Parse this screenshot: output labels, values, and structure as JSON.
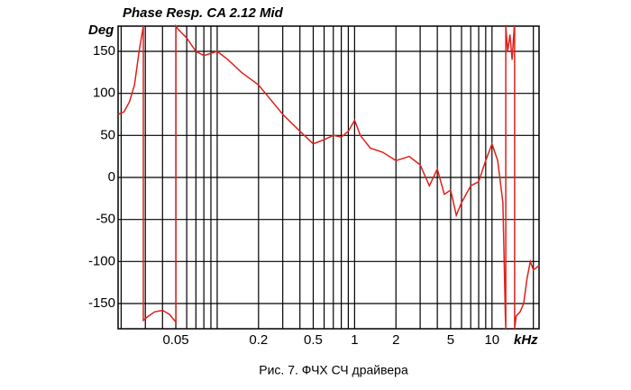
{
  "chart_data": {
    "type": "line",
    "title": "Phase Resp.  CA  2.12 Mid",
    "y_label": "Deg",
    "x_label": "kHz",
    "caption": "Рис. 7. ФЧХ СЧ драйвера",
    "log_x": true,
    "grid": true,
    "xlim": [
      0.019,
      22
    ],
    "ylim": [
      -180,
      180
    ],
    "xticks": [
      0.05,
      0.2,
      0.5,
      1,
      2,
      5,
      10
    ],
    "xminor_ticks": [
      0.02,
      0.03,
      0.04,
      0.05,
      0.06,
      0.07,
      0.08,
      0.09,
      0.1,
      0.2,
      0.3,
      0.4,
      0.5,
      0.6,
      0.7,
      0.8,
      0.9,
      1,
      2,
      3,
      4,
      5,
      6,
      7,
      8,
      9,
      10,
      20
    ],
    "yticks": [
      150,
      100,
      50,
      0,
      -50,
      -100,
      -150
    ],
    "series": [
      {
        "name": "Phase",
        "color": "#e0201a",
        "x": [
          0.019,
          0.021,
          0.023,
          0.025,
          0.027,
          0.029,
          0.029,
          0.031,
          0.035,
          0.04,
          0.045,
          0.05,
          0.05,
          0.052,
          0.06,
          0.07,
          0.08,
          0.1,
          0.12,
          0.15,
          0.2,
          0.3,
          0.4,
          0.5,
          0.6,
          0.7,
          0.8,
          0.9,
          1.0,
          1.1,
          1.3,
          1.6,
          2,
          2.5,
          3,
          3.5,
          4,
          4.5,
          5,
          5.5,
          6,
          7,
          8,
          9,
          10,
          11,
          12,
          12.5,
          12.6,
          12.6,
          13,
          13.5,
          14,
          14.5,
          14.6,
          14.6,
          15,
          16,
          17,
          18,
          19,
          20,
          22
        ],
        "values": [
          75,
          78,
          90,
          110,
          150,
          180,
          -170,
          -166,
          -160,
          -158,
          -163,
          -172,
          180,
          176,
          166,
          150,
          145,
          150,
          140,
          125,
          110,
          75,
          55,
          40,
          45,
          50,
          48,
          55,
          68,
          50,
          35,
          30,
          20,
          25,
          15,
          -10,
          10,
          -20,
          -15,
          -45,
          -30,
          -10,
          -5,
          20,
          40,
          20,
          -30,
          -165,
          -180,
          180,
          150,
          170,
          140,
          178,
          180,
          -180,
          -165,
          -160,
          -150,
          -120,
          -100,
          -110,
          -105
        ]
      }
    ]
  }
}
